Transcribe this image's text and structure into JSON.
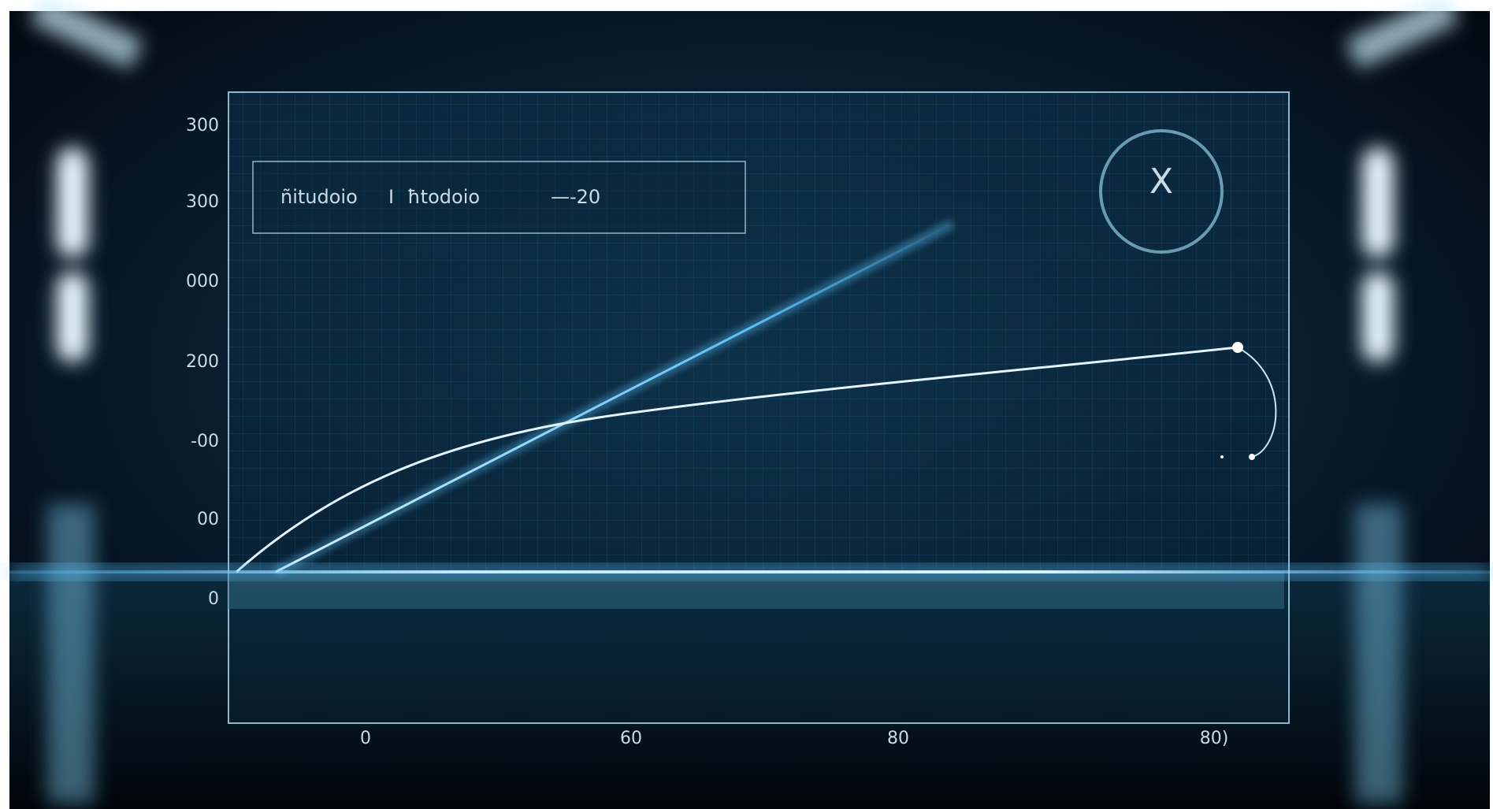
{
  "y_axis_labels": [
    "300",
    "300",
    "000",
    "200",
    "-00",
    "00",
    "0"
  ],
  "x_axis_labels": [
    "0",
    "60",
    "80",
    "80)"
  ],
  "legend": {
    "items": [
      "ñitudoio",
      "I",
      "ħtodoio",
      "—-20"
    ]
  },
  "badge": "X"
}
